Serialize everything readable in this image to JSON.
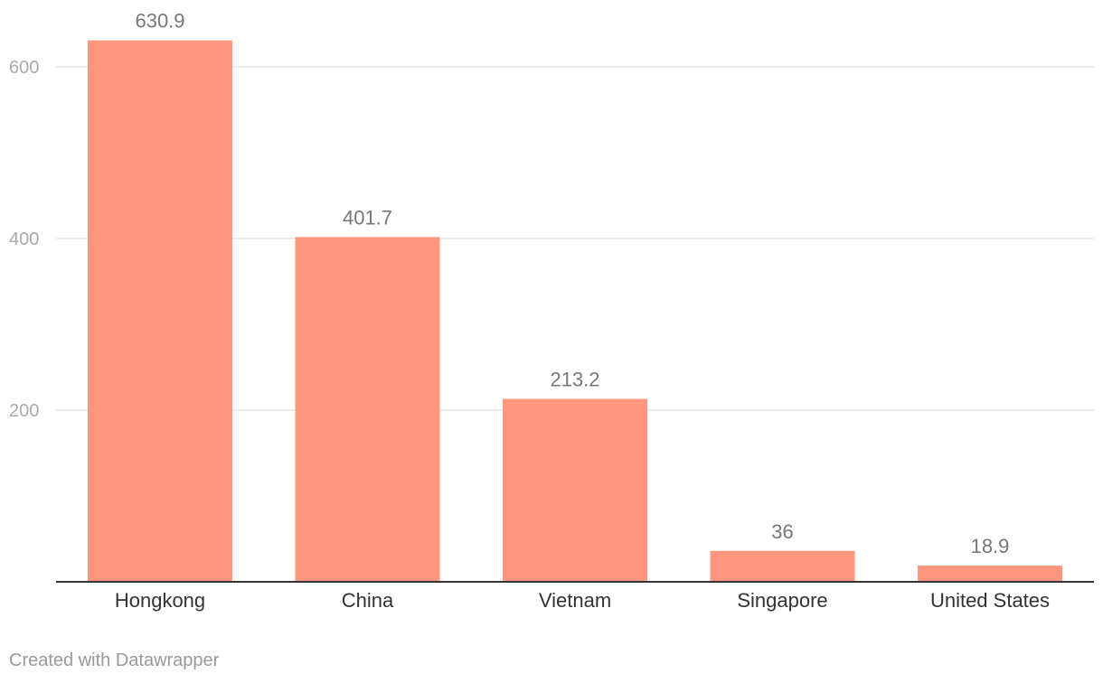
{
  "chart_data": {
    "type": "bar",
    "categories": [
      "Hongkong",
      "China",
      "Vietnam",
      "Singapore",
      "United States"
    ],
    "values": [
      630.9,
      401.7,
      213.2,
      36,
      18.9
    ],
    "value_labels": [
      "630.9",
      "401.7",
      "213.2",
      "36",
      "18.9"
    ],
    "y_ticks": [
      200,
      400,
      600
    ],
    "y_tick_labels": [
      "200",
      "400",
      "600"
    ],
    "ylim": [
      0,
      660
    ],
    "grid": true,
    "bar_color": "#ff9680",
    "value_label_color": "#777777",
    "axis_tick_color": "#aaaaaa",
    "category_label_color": "#333333",
    "gridline_color": "#e5e5e5",
    "baseline_color": "#333333"
  },
  "footer": {
    "credit": "Created with Datawrapper"
  }
}
